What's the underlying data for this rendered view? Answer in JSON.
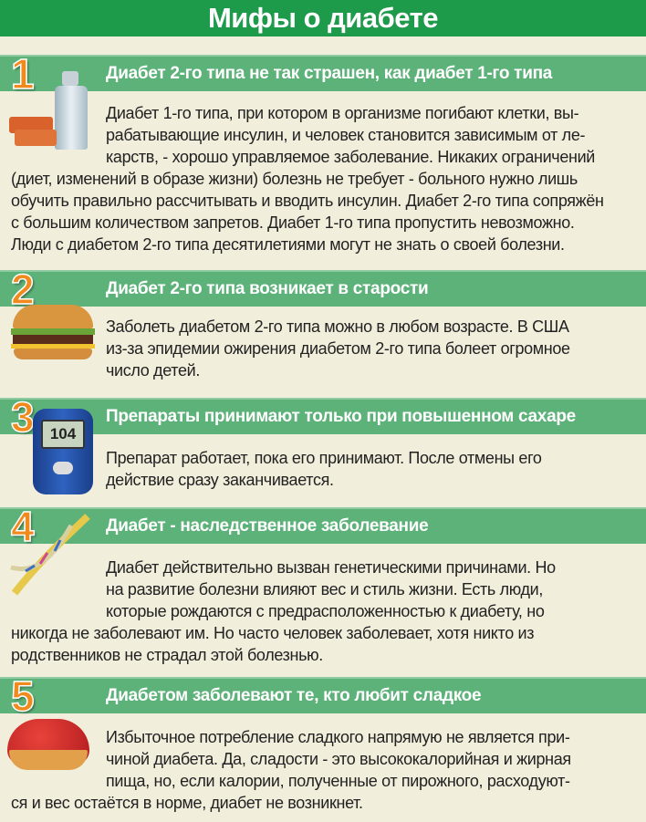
{
  "title": "Мифы о диабете",
  "colors": {
    "header": "#1e9a4b",
    "section_bar": "#5db27a",
    "background": "#f2eedc",
    "number": "#f08a1c"
  },
  "sections": [
    {
      "number": "1",
      "heading": "Диабет 2-го типа не так страшен, как диабет 1-го типа",
      "image": "insulin-vial-icon",
      "lines": [
        "Диабет 1-го типа, при котором в организме погибают клетки, вы-",
        "рабатывающие инсулин, и человек становится зависимым от ле-",
        "карств, - хорошо управляемое заболевание. Никаких ограничений",
        "(диет, изменений в образе жизни) болезнь не требует - больного нужно лишь",
        "обучить правильно рассчитывать и вводить инсулин. Диабет 2-го типа сопряжён",
        "с большим количеством запретов. Диабет 1-го типа пропустить невозможно.",
        "Люди с диабетом 2-го типа десятилетиями могут не знать о своей болезни."
      ]
    },
    {
      "number": "2",
      "heading": "Диабет 2-го типа возникает в старости",
      "image": "burger-icon",
      "lines": [
        "Заболеть диабетом 2-го типа можно в любом возрасте. В США",
        "из-за эпидемии ожирения диабетом 2-го типа болеет огромное",
        "число детей."
      ]
    },
    {
      "number": "3",
      "heading": "Препараты принимают только при повышенном сахаре",
      "image": "glucometer-icon",
      "glucometer_reading": "104",
      "lines": [
        "Препарат работает, пока его принимают. После отмены его",
        "действие сразу заканчивается."
      ]
    },
    {
      "number": "4",
      "heading": "Диабет - наследственное заболевание",
      "image": "dna-icon",
      "lines": [
        "Диабет действительно вызван генетическими причинами. Но",
        "на развитие болезни влияют вес и стиль жизни. Есть люди,",
        "которые рождаются с предрасположенностью к диабету, но",
        "никогда не заболевают им. Но часто человек заболевает, хотя никто из",
        "родственников не страдал этой болезнью."
      ]
    },
    {
      "number": "5",
      "heading": "Диабетом заболевают те, кто любит сладкое",
      "image": "strawberry-tart-icon",
      "lines": [
        "Избыточное потребление сладкого напрямую не является при-",
        "чиной диабета. Да, сладости - это высококалорийная и жирная",
        "пища, но, если калории, полученные от пирожного, расходуют-",
        "ся и вес остаётся в норме, диабет не возникнет."
      ]
    }
  ]
}
